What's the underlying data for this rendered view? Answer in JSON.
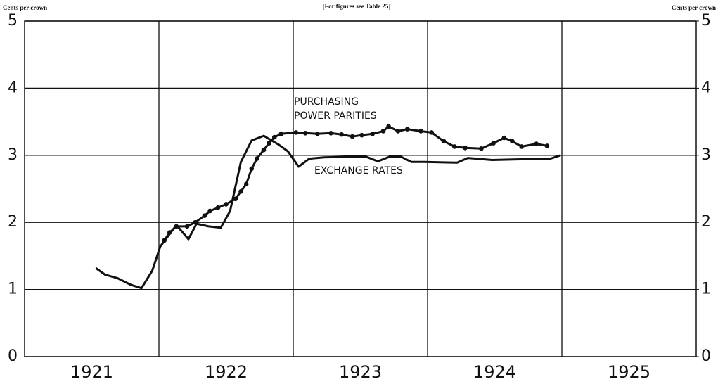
{
  "chart_data": {
    "type": "line",
    "title": "[For figures see Table 25]",
    "y_label": "Cents per crown",
    "y2_label": "Cents per crown",
    "categories": [
      "1921",
      "1922",
      "1923",
      "1924",
      "1925"
    ],
    "xlim": [
      1921,
      1926
    ],
    "ylim": [
      0,
      5
    ],
    "yticks": [
      0,
      1,
      2,
      3,
      4,
      5
    ],
    "y2lim": [
      0,
      5
    ],
    "y2ticks": [
      0,
      1,
      2,
      3,
      4,
      5
    ],
    "grid": true,
    "annotations": [
      "PURCHASING",
      "POWER PARITIES",
      "EXCHANGE RATES"
    ],
    "series": [
      {
        "name": "Exchange rates",
        "color": "#111",
        "markers": false,
        "x": [
          1921.53,
          1921.6,
          1921.69,
          1921.79,
          1921.87,
          1921.95,
          1922.01,
          1922.13,
          1922.22,
          1922.28,
          1922.37,
          1922.46,
          1922.53,
          1922.61,
          1922.69,
          1922.78,
          1922.89,
          1922.96,
          1923.04,
          1923.12,
          1923.23,
          1923.44,
          1923.54,
          1923.63,
          1923.72,
          1923.8,
          1923.88,
          1923.98,
          1924.22,
          1924.3,
          1924.48,
          1924.69,
          1924.9,
          1924.99
        ],
        "values": [
          1.32,
          1.22,
          1.17,
          1.07,
          1.02,
          1.28,
          1.64,
          1.96,
          1.75,
          1.98,
          1.94,
          1.92,
          2.17,
          2.9,
          3.22,
          3.29,
          3.16,
          3.06,
          2.83,
          2.95,
          2.97,
          2.98,
          2.98,
          2.91,
          2.98,
          2.98,
          2.9,
          2.9,
          2.89,
          2.96,
          2.93,
          2.94,
          2.94,
          3.0
        ]
      },
      {
        "name": "Purchasing power parities",
        "color": "#111",
        "markers": true,
        "x": [
          1922.04,
          1922.08,
          1922.13,
          1922.21,
          1922.27,
          1922.34,
          1922.38,
          1922.44,
          1922.5,
          1922.57,
          1922.61,
          1922.65,
          1922.69,
          1922.73,
          1922.78,
          1922.82,
          1922.86,
          1922.91,
          1923.02,
          1923.09,
          1923.18,
          1923.28,
          1923.36,
          1923.44,
          1923.51,
          1923.59,
          1923.67,
          1923.71,
          1923.78,
          1923.85,
          1923.95,
          1924.03,
          1924.12,
          1924.2,
          1924.28,
          1924.4,
          1924.49,
          1924.57,
          1924.63,
          1924.7,
          1924.81,
          1924.89
        ],
        "values": [
          1.73,
          1.85,
          1.94,
          1.94,
          2.0,
          2.1,
          2.17,
          2.22,
          2.27,
          2.35,
          2.46,
          2.57,
          2.8,
          2.95,
          3.08,
          3.18,
          3.27,
          3.32,
          3.34,
          3.33,
          3.32,
          3.33,
          3.31,
          3.28,
          3.3,
          3.32,
          3.36,
          3.43,
          3.36,
          3.39,
          3.36,
          3.34,
          3.21,
          3.13,
          3.11,
          3.1,
          3.18,
          3.26,
          3.21,
          3.13,
          3.17,
          3.14
        ]
      }
    ]
  }
}
